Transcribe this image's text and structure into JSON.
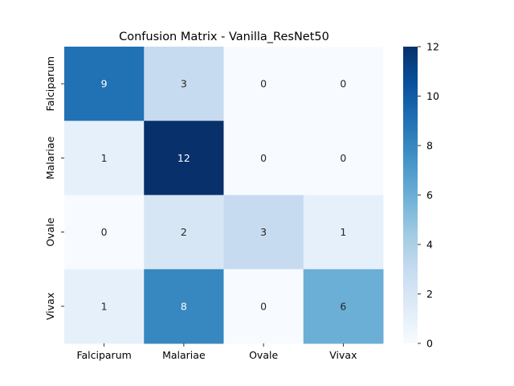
{
  "chart_data": {
    "type": "heatmap",
    "title": "Confusion Matrix - Vanilla_ResNet50",
    "xlabel": "",
    "ylabel": "",
    "x_categories": [
      "Falciparum",
      "Malariae",
      "Ovale",
      "Vivax"
    ],
    "y_categories": [
      "Falciparum",
      "Malariae",
      "Ovale",
      "Vivax"
    ],
    "matrix": [
      [
        9,
        3,
        0,
        0
      ],
      [
        1,
        12,
        0,
        0
      ],
      [
        0,
        2,
        3,
        1
      ],
      [
        1,
        8,
        0,
        6
      ]
    ],
    "value_range": [
      0,
      12
    ],
    "colormap": "Blues",
    "colorbar_ticks": [
      0,
      2,
      4,
      6,
      8,
      10,
      12
    ],
    "grid": false
  }
}
